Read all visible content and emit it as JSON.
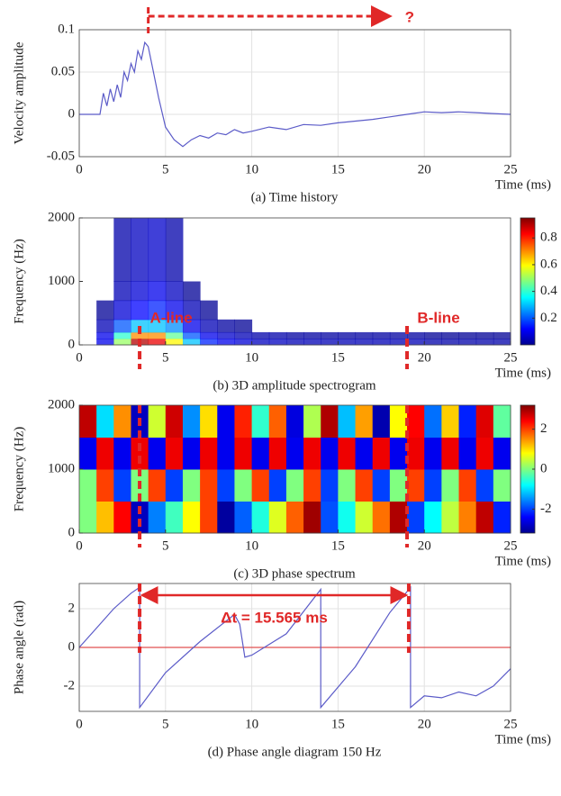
{
  "chart_data": [
    {
      "type": "line",
      "caption": "(a) Time history",
      "ylabel": "Velocity amplitude",
      "xlabel": "Time (ms)",
      "color": "#5b5bc8",
      "grid": true,
      "x": [
        0,
        1.2,
        1.4,
        1.6,
        1.8,
        2.0,
        2.2,
        2.4,
        2.6,
        2.8,
        3.0,
        3.2,
        3.4,
        3.6,
        3.8,
        4.0,
        4.3,
        4.6,
        5.0,
        5.5,
        6.0,
        6.5,
        7,
        7.5,
        8,
        8.5,
        9,
        9.5,
        10,
        11,
        12,
        13,
        14,
        15,
        16,
        17,
        18,
        19,
        20,
        21,
        22,
        23,
        24,
        25
      ],
      "values": [
        0,
        0,
        0.025,
        0.01,
        0.03,
        0.015,
        0.035,
        0.02,
        0.05,
        0.04,
        0.06,
        0.05,
        0.075,
        0.065,
        0.085,
        0.08,
        0.05,
        0.02,
        -0.015,
        -0.03,
        -0.038,
        -0.03,
        -0.025,
        -0.028,
        -0.022,
        -0.024,
        -0.018,
        -0.022,
        -0.02,
        -0.015,
        -0.018,
        -0.012,
        -0.013,
        -0.01,
        -0.008,
        -0.006,
        -0.003,
        0,
        0.003,
        0.002,
        0.003,
        0.002,
        0.001,
        0
      ],
      "xlim": [
        0,
        25
      ],
      "xticks": [
        0,
        5,
        10,
        15,
        20,
        25
      ],
      "ylim": [
        -0.05,
        0.1
      ],
      "yticks": [
        -0.05,
        0,
        0.05,
        0.1
      ],
      "arrow": {
        "from": 4,
        "to": 18
      },
      "annotation": "?"
    },
    {
      "type": "contour",
      "caption": "(b) 3D amplitude spectrogram",
      "ylabel": "Frequency (Hz)",
      "xlabel": "Time (ms)",
      "xbins": [
        0,
        1,
        2,
        3,
        4,
        5,
        6,
        7,
        8,
        9,
        10,
        11,
        12,
        13,
        14,
        15,
        16,
        17,
        18,
        19,
        20,
        21,
        22,
        23,
        24,
        25
      ],
      "ybins": [
        0,
        100,
        200,
        400,
        700,
        1000,
        2000
      ],
      "z": [
        [
          0,
          0.1,
          0.5,
          0.9,
          0.85,
          0.6,
          0.3,
          0.15,
          0.1,
          0.08,
          0.06,
          0.06,
          0.05,
          0.05,
          0.05,
          0.05,
          0.05,
          0.05,
          0.05,
          0.05,
          0.04,
          0.04,
          0.04,
          0.04,
          0.04
        ],
        [
          0,
          0.1,
          0.4,
          0.7,
          0.7,
          0.45,
          0.2,
          0.1,
          0.07,
          0.05,
          0.04,
          0.04,
          0.03,
          0.03,
          0.03,
          0.03,
          0.03,
          0.03,
          0.03,
          0.03,
          0.02,
          0.02,
          0.02,
          0.02,
          0.02
        ],
        [
          0,
          0.05,
          0.2,
          0.3,
          0.3,
          0.25,
          0.1,
          0.05,
          0.03,
          0.02,
          0,
          0,
          0,
          0,
          0,
          0,
          0,
          0,
          0,
          0,
          0,
          0,
          0,
          0,
          0
        ],
        [
          0,
          0.02,
          0.08,
          0.12,
          0.15,
          0.1,
          0.05,
          0.02,
          0,
          0,
          0,
          0,
          0,
          0,
          0,
          0,
          0,
          0,
          0,
          0,
          0,
          0,
          0,
          0,
          0
        ],
        [
          0,
          0,
          0.05,
          0.08,
          0.1,
          0.06,
          0.02,
          0,
          0,
          0,
          0,
          0,
          0,
          0,
          0,
          0,
          0,
          0,
          0,
          0,
          0,
          0,
          0,
          0,
          0
        ],
        [
          0,
          0,
          0.04,
          0.06,
          0.07,
          0.04,
          0,
          0,
          0,
          0,
          0,
          0,
          0,
          0,
          0,
          0,
          0,
          0,
          0,
          0,
          0,
          0,
          0,
          0,
          0
        ]
      ],
      "xlim": [
        0,
        25
      ],
      "xticks": [
        0,
        5,
        10,
        15,
        20,
        25
      ],
      "ylim": [
        0,
        2000
      ],
      "yticks": [
        0,
        1000,
        2000
      ],
      "clim": [
        0,
        0.95
      ],
      "cticks": [
        0.2,
        0.4,
        0.6,
        0.8
      ],
      "vlines": [
        3.5,
        19
      ],
      "line_labels": [
        "A-line",
        "B-line"
      ]
    },
    {
      "type": "heatmap",
      "caption": "(c) 3D phase spectrum",
      "ylabel": "Frequency (Hz)",
      "xlabel": "Time (ms)",
      "xbins": [
        0,
        1,
        2,
        3,
        4,
        5,
        6,
        7,
        8,
        9,
        10,
        11,
        12,
        13,
        14,
        15,
        16,
        17,
        18,
        19,
        20,
        21,
        22,
        23,
        24,
        25
      ],
      "ybins": [
        0,
        500,
        1000,
        1500,
        2000
      ],
      "z": [
        [
          0,
          1.2,
          2.4,
          -2.8,
          -1.6,
          -0.4,
          0.8,
          2,
          -3,
          -1.8,
          -0.6,
          0.6,
          1.8,
          3,
          -1.9,
          -0.7,
          0.5,
          1.7,
          2.9,
          -2,
          -0.8,
          0.4,
          1.6,
          2.8,
          -2.2
        ],
        [
          0,
          2,
          -2,
          0,
          2,
          -2,
          0,
          2,
          -2,
          0,
          2,
          -2,
          0,
          2,
          -2,
          0,
          2,
          -2,
          0,
          2,
          -2,
          0,
          2,
          -2,
          0
        ],
        [
          -2.5,
          2.5,
          -2.5,
          2.5,
          -2.5,
          2.5,
          -2.5,
          2.5,
          -2.5,
          2.5,
          -2.5,
          2.5,
          -2.5,
          2.5,
          -2.5,
          2.5,
          -2.5,
          2.5,
          -2.5,
          2.5,
          -2.5,
          2.5,
          -2.5,
          2.5,
          -2.5
        ],
        [
          2.8,
          -1,
          1.5,
          -2.8,
          0.5,
          2.7,
          -1.5,
          1,
          -2.5,
          2.2,
          -0.5,
          1.8,
          -2.6,
          0.3,
          2.9,
          -1.2,
          1.4,
          -2.9,
          0.8,
          2.4,
          -1.7,
          1.1,
          -2.2,
          2.6,
          -0.2
        ]
      ],
      "xlim": [
        0,
        25
      ],
      "xticks": [
        0,
        5,
        10,
        15,
        20,
        25
      ],
      "ylim": [
        0,
        2000
      ],
      "yticks": [
        0,
        1000,
        2000
      ],
      "clim": [
        -3.2,
        3.2
      ],
      "cticks": [
        -2,
        0,
        2
      ],
      "vlines": [
        3.5,
        19
      ]
    },
    {
      "type": "line",
      "caption": "(d) Phase angle diagram 150 Hz",
      "ylabel": "Phase angle (rad)",
      "xlabel": "Time (ms)",
      "color": "#5b5bc8",
      "grid": true,
      "x": [
        0,
        1,
        2,
        3,
        3.5,
        3.5,
        5,
        7,
        9,
        9.3,
        9.6,
        10,
        12,
        14,
        14,
        16,
        18,
        19.2,
        19.2,
        20,
        21,
        22,
        23,
        24,
        25
      ],
      "values": [
        0,
        1.0,
        2.0,
        2.8,
        3.1,
        -3.1,
        -1.3,
        0.3,
        1.7,
        1.2,
        -0.5,
        -0.4,
        0.7,
        3.0,
        -3.1,
        -1.0,
        1.8,
        3.1,
        -3.1,
        -2.5,
        -2.6,
        -2.3,
        -2.5,
        -2.0,
        -1.1
      ],
      "xlim": [
        0,
        25
      ],
      "xticks": [
        0,
        5,
        10,
        15,
        20,
        25
      ],
      "ylim": [
        -3.3,
        3.3
      ],
      "yticks": [
        -2,
        0,
        2
      ],
      "hline": 0,
      "vlines": [
        3.5,
        19.1
      ],
      "annotation": "Δt = 15.565 ms"
    }
  ]
}
